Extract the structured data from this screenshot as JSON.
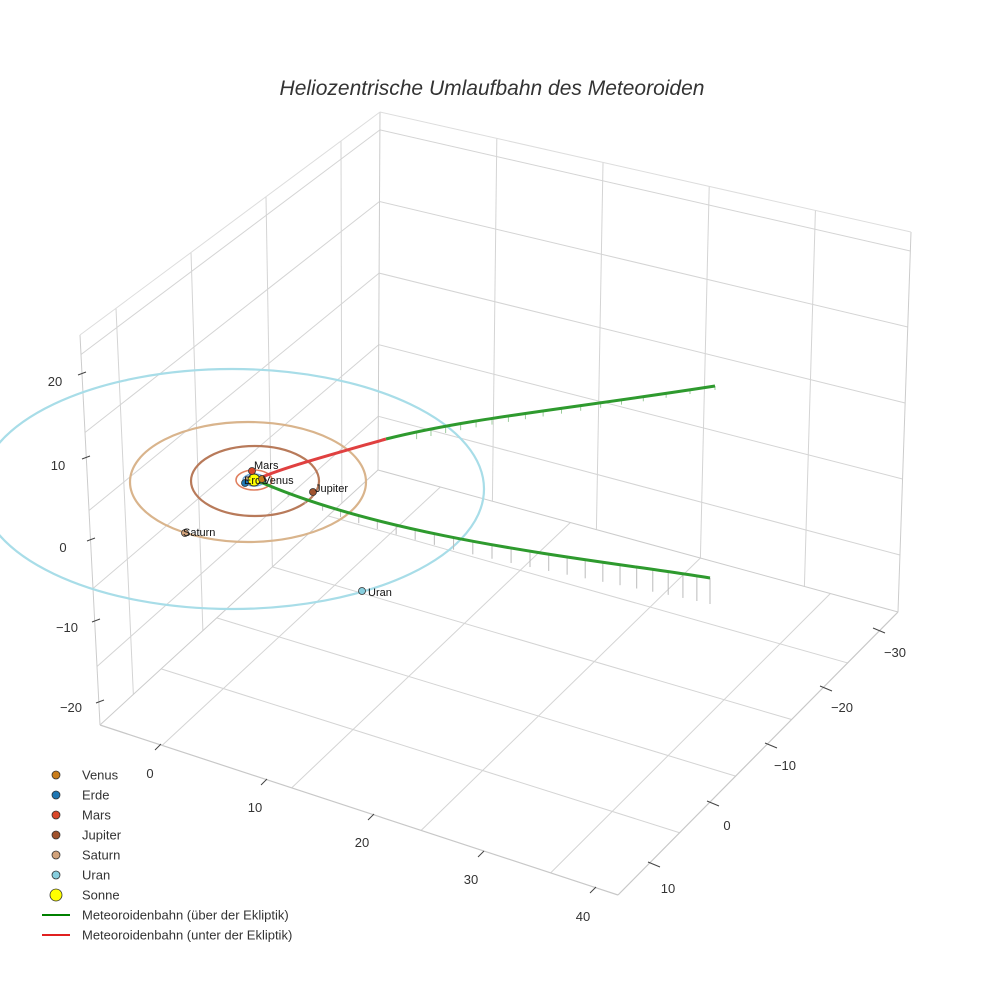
{
  "chart_data": {
    "type": "scatter3d",
    "title": "Heliozentrische Umlaufbahn des Meteoroiden",
    "axes": {
      "x": {
        "ticks": [
          "0",
          "10",
          "20",
          "30",
          "40"
        ]
      },
      "y": {
        "ticks": [
          "−30",
          "−20",
          "−10",
          "0",
          "10"
        ]
      },
      "z": {
        "ticks": [
          "20",
          "10",
          "0",
          "−10",
          "−20"
        ]
      }
    },
    "legend": {
      "placement": "bottom-left",
      "items": [
        {
          "label": "Venus",
          "kind": "marker",
          "color": "#c97c1a"
        },
        {
          "label": "Erde",
          "kind": "marker",
          "color": "#1f77b4"
        },
        {
          "label": "Mars",
          "kind": "marker",
          "color": "#d9482a"
        },
        {
          "label": "Jupiter",
          "kind": "marker",
          "color": "#a0522d"
        },
        {
          "label": "Saturn",
          "kind": "marker",
          "color": "#d2a27a"
        },
        {
          "label": "Uran",
          "kind": "marker",
          "color": "#87cede"
        },
        {
          "label": "Sonne",
          "kind": "marker-large",
          "color": "#ffff00"
        },
        {
          "label": "Meteoroidenbahn (über der Ekliptik)",
          "kind": "line",
          "color": "#008000"
        },
        {
          "label": "Meteoroidenbahn (unter der Ekliptik)",
          "kind": "line",
          "color": "#e02020"
        }
      ]
    },
    "planet_labels": [
      {
        "name": "Mars",
        "color": "#d9482a"
      },
      {
        "name": "Erde",
        "color": "#1f77b4"
      },
      {
        "name": "Venus",
        "color": "#c97c1a"
      },
      {
        "name": "Jupiter",
        "color": "#a0522d"
      },
      {
        "name": "Saturn",
        "color": "#d2a27a"
      },
      {
        "name": "Uran",
        "color": "#87cede"
      }
    ],
    "orbit_colors": {
      "venus": "#d8a060",
      "erde": "#6fa8dc",
      "mars": "#e08060",
      "jupiter": "#b87a5a",
      "saturn": "#d9b48c",
      "uran": "#a8dde8"
    },
    "trajectory_colors": {
      "above": "#2e9a2e",
      "below": "#e04040"
    }
  }
}
